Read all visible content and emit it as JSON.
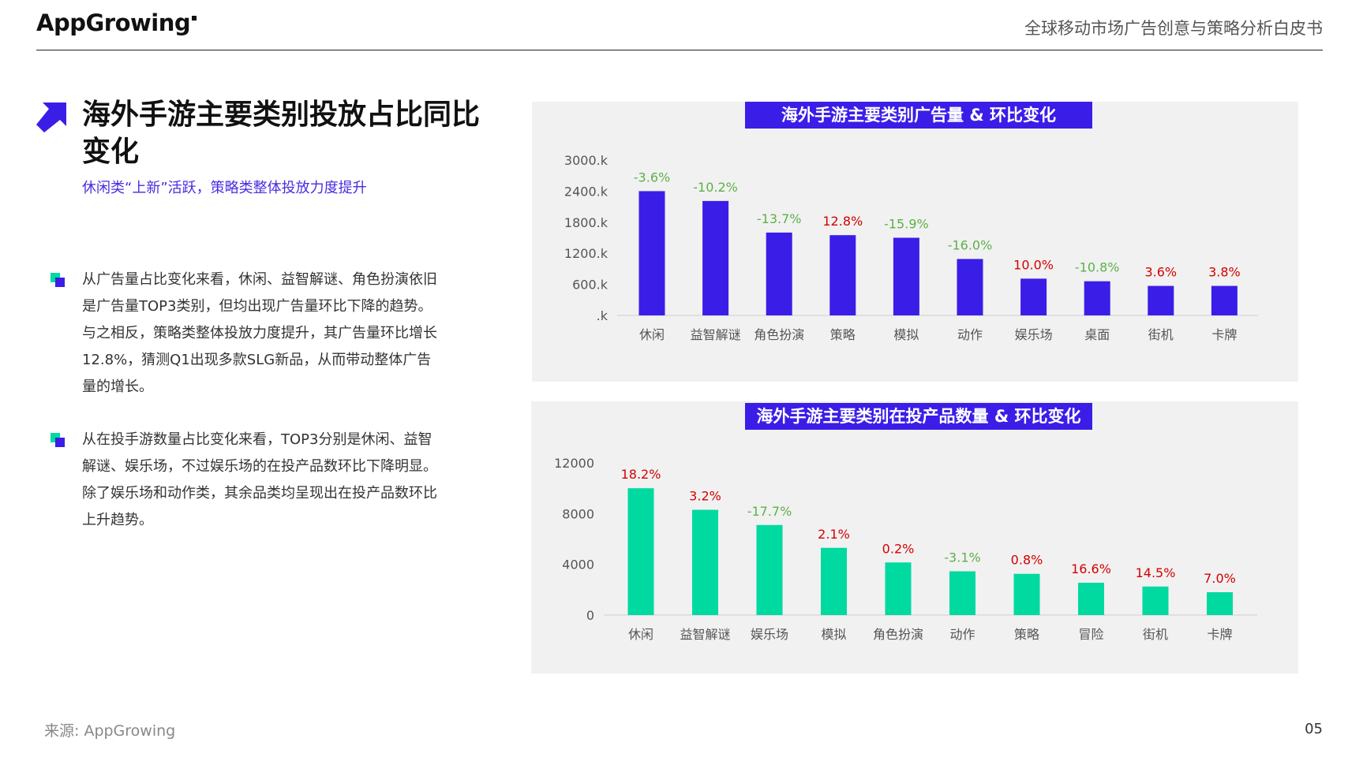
{
  "header": {
    "logo_text": "AppGrowing",
    "report_title": "全球移动市场广告创意与策略分析白皮书"
  },
  "left": {
    "title": "海外手游主要类别投放占比同比变化",
    "subtitle": "休闲类“上新”活跃，策略类整体投放力度提升",
    "bullets": [
      "从广告量占比变化来看，休闲、益智解谜、角色扮演依旧是广告量TOP3类别，但均出现广告量环比下降的趋势。与之相反，策略类整体投放力度提升，其广告量环比增长12.8%，猜测Q1出现多款SLG新品，从而带动整体广告量的增长。",
      "从在投手游数量占比变化来看，TOP3分别是休闲、益智解谜、娱乐场，不过娱乐场的在投产品数环比下降明显。除了娱乐场和动作类，其余品类均呈现出在投产品数环比上升趋势。"
    ]
  },
  "colors": {
    "accent": "#3b1de8",
    "teal": "#00d9a0",
    "positive": "#d40000",
    "negative": "#5db04a"
  },
  "chart_data": [
    {
      "type": "bar",
      "title": "海外手游主要类别广告量 & 环比变化",
      "categories": [
        "休闲",
        "益智解谜",
        "角色扮演",
        "策略",
        "模拟",
        "动作",
        "娱乐场",
        "桌面",
        "街机",
        "卡牌"
      ],
      "values": [
        2400,
        2210,
        1600,
        1550,
        1500,
        1090,
        710,
        660,
        570,
        570
      ],
      "changes": [
        "-3.6%",
        "-10.2%",
        "-13.7%",
        "12.8%",
        "-15.9%",
        "-16.0%",
        "10.0%",
        "-10.8%",
        "3.6%",
        "3.8%"
      ],
      "ylim": [
        0,
        3000
      ],
      "yticks": [
        0,
        600,
        1200,
        1800,
        2400,
        3000
      ],
      "ytick_labels": [
        ".k",
        "600.k",
        "1200.k",
        "1800.k",
        "2400.k",
        "3000.k"
      ],
      "bar_color": "#3b1de8"
    },
    {
      "type": "bar",
      "title": "海外手游主要类别在投产品数量 & 环比变化",
      "categories": [
        "休闲",
        "益智解谜",
        "娱乐场",
        "模拟",
        "角色扮演",
        "动作",
        "策略",
        "冒险",
        "街机",
        "卡牌"
      ],
      "values": [
        10000,
        8300,
        7100,
        5300,
        4150,
        3450,
        3250,
        2550,
        2250,
        1800
      ],
      "changes": [
        "18.2%",
        "3.2%",
        "-17.7%",
        "2.1%",
        "0.2%",
        "-3.1%",
        "0.8%",
        "16.6%",
        "14.5%",
        "7.0%"
      ],
      "ylim": [
        0,
        12000
      ],
      "yticks": [
        0,
        4000,
        8000,
        12000
      ],
      "ytick_labels": [
        "0",
        "4000",
        "8000",
        "12000"
      ],
      "bar_color": "#00d9a0"
    }
  ],
  "footer": {
    "source": "来源: AppGrowing",
    "page": "05"
  }
}
